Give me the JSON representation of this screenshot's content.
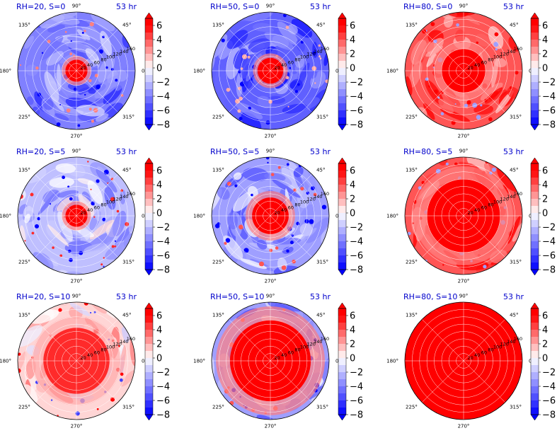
{
  "chart_data": {
    "type": "heatmap",
    "projection": "polar",
    "grid": true,
    "colormap": "bwr",
    "colorbar": {
      "ticks": [
        "6",
        "4",
        "2",
        "0",
        "−2",
        "−4",
        "−6",
        "−8"
      ],
      "range": [
        -8,
        7
      ],
      "extend": "both"
    },
    "angle_tick_labels": [
      "90°",
      "45°",
      "0°",
      "315°",
      "270°",
      "225°",
      "180°",
      "135°"
    ],
    "radial_tick_labels": [
      "20",
      "40",
      "60",
      "80",
      "100",
      "120",
      "140",
      "160"
    ],
    "panels": [
      {
        "title": "RH=20, S=0",
        "time": "53 hr",
        "core_value": 6,
        "outer_value": -4,
        "core_radius_km": 30
      },
      {
        "title": "RH=50, S=0",
        "time": "53 hr",
        "core_value": 6,
        "outer_value": -5,
        "core_radius_km": 35
      },
      {
        "title": "RH=80, S=0",
        "time": "53 hr",
        "core_value": 6,
        "outer_value": 4,
        "core_radius_km": 60
      },
      {
        "title": "RH=20, S=5",
        "time": "53 hr",
        "core_value": 6,
        "outer_value": -2,
        "core_radius_km": 30
      },
      {
        "title": "RH=50, S=5",
        "time": "53 hr",
        "core_value": 6,
        "outer_value": -3,
        "core_radius_km": 50
      },
      {
        "title": "RH=80, S=5",
        "time": "53 hr",
        "core_value": 6,
        "outer_value": 4,
        "core_radius_km": 100
      },
      {
        "title": "RH=20, S=10",
        "time": "53 hr",
        "core_value": 5,
        "outer_value": 1,
        "core_radius_km": 90
      },
      {
        "title": "RH=50, S=10",
        "time": "53 hr",
        "core_value": 6,
        "outer_value": -3,
        "core_radius_km": 110
      },
      {
        "title": "RH=80, S=10",
        "time": "53 hr",
        "core_value": 7,
        "outer_value": 6,
        "core_radius_km": 160
      }
    ]
  }
}
